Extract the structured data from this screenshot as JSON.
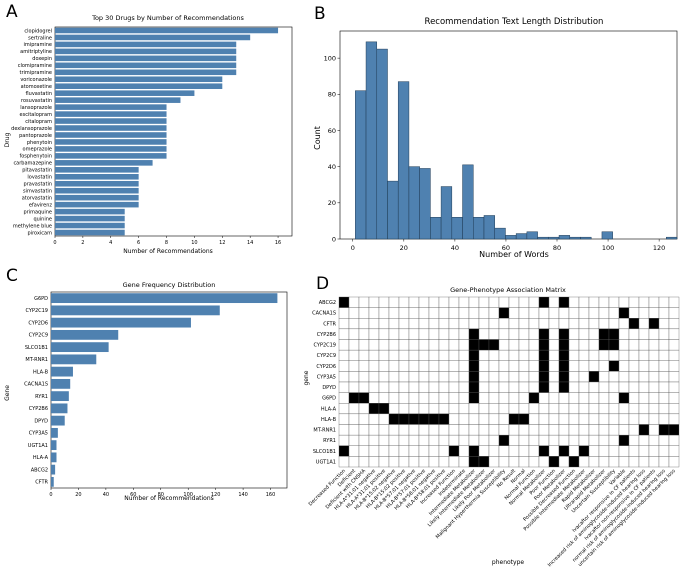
{
  "panel_letters": [
    "A",
    "B",
    "C",
    "D"
  ],
  "colors": {
    "bar": "#4f81b0",
    "hist_edge": "#1f3b55",
    "filled": "#000000",
    "grid_line": "#555555"
  },
  "chart_data": [
    {
      "id": "A",
      "type": "bar",
      "orientation": "horizontal",
      "title": "Top 30 Drugs by Number of Recommendations",
      "xlabel": "Number of Recommendations",
      "ylabel": "Drug",
      "xlim": [
        0,
        17
      ],
      "xticks": [
        0,
        2,
        4,
        6,
        8,
        10,
        12,
        14,
        16
      ],
      "categories": [
        "clopidogrel",
        "sertraline",
        "imipramine",
        "amitriptyline",
        "doxepin",
        "clomipramine",
        "trimipramine",
        "voriconazole",
        "atomoxetine",
        "fluvastatin",
        "rosuvastatin",
        "lansoprazole",
        "escitalopram",
        "citalopram",
        "dexlansoprazole",
        "pantoprazole",
        "phenytoin",
        "omeprazole",
        "fosphenytoin",
        "carbamazepine",
        "pitavastatin",
        "lovastatin",
        "pravastatin",
        "simvastatin",
        "atorvastatin",
        "efavirenz",
        "primaquine",
        "quinine",
        "methylene blue",
        "piroxicam"
      ],
      "values": [
        16,
        14,
        13,
        13,
        13,
        13,
        13,
        12,
        12,
        10,
        9,
        8,
        8,
        8,
        8,
        8,
        8,
        8,
        8,
        7,
        6,
        6,
        6,
        6,
        6,
        6,
        5,
        5,
        5,
        5
      ]
    },
    {
      "id": "B",
      "type": "bar",
      "subtype": "histogram",
      "title": "Recommendation Text Length Distribution",
      "xlabel": "Number of Words",
      "ylabel": "Count",
      "xlim": [
        -5,
        127
      ],
      "ylim": [
        0,
        115
      ],
      "xticks": [
        0,
        20,
        40,
        60,
        80,
        100,
        120
      ],
      "yticks": [
        0,
        20,
        40,
        60,
        80,
        100
      ],
      "bin_width": 4.2,
      "bin_start": 1,
      "counts": [
        82,
        109,
        105,
        32,
        87,
        40,
        39,
        12,
        29,
        12,
        41,
        12,
        13,
        6,
        2,
        3,
        4,
        1,
        1,
        2,
        1,
        1,
        0,
        4,
        0,
        0,
        0,
        0,
        0,
        1
      ]
    },
    {
      "id": "C",
      "type": "bar",
      "orientation": "horizontal",
      "title": "Gene Frequency Distribution",
      "xlabel": "Number of Recommendations",
      "ylabel": "Gene",
      "xlim": [
        0,
        172
      ],
      "xticks": [
        0,
        20,
        40,
        60,
        80,
        100,
        120,
        140,
        160
      ],
      "categories": [
        "G6PD",
        "CYP2C19",
        "CYP2D6",
        "CYP2C9",
        "SLCO1B1",
        "MT-RNR1",
        "HLA-B",
        "CACNA1S",
        "RYR1",
        "CYP2B6",
        "DPYD",
        "CYP3A5",
        "UGT1A1",
        "HLA-A",
        "ABCG2",
        "CFTR"
      ],
      "values": [
        165,
        123,
        102,
        49,
        42,
        33,
        16,
        14,
        13,
        12,
        10,
        5,
        4,
        4,
        3,
        2
      ]
    },
    {
      "id": "D",
      "type": "heatmap",
      "title": "Gene-Phenotype Association Matrix",
      "xlabel": "phenotype",
      "ylabel": "gene",
      "rows": [
        "ABCG2",
        "CACNA1S",
        "CFTR",
        "CYP2B6",
        "CYP2C19",
        "CYP2C9",
        "CYP2D6",
        "CYP3A5",
        "DPYD",
        "G6PD",
        "HLA-A",
        "HLA-B",
        "MT-RNR1",
        "RYR1",
        "SLCO1B1",
        "UGT1A1"
      ],
      "columns": [
        "Decreased Function",
        "Deficient",
        "Deficient with CNSHA",
        "HLA-A*31:01 negative",
        "HLA-A*31:01 positive",
        "HLA-B*15:02 negative",
        "HLA-B*15:02 positive",
        "HLA-B*57:01 negative",
        "HLA-B*57:01 positive",
        "HLA-B*58:01 negative",
        "HLA-B*58:01 positive",
        "Increased Function",
        "Indeterminate",
        "Intermediate Metabolizer",
        "Likely Intermediate Metabolizer",
        "Likely Poor Metabolizer",
        "Malignant Hyperthermia Susceptibility",
        "No Result",
        "Normal",
        "Normal Function",
        "Normal Metabolizer",
        "Poor Function",
        "Poor Metabolizer",
        "Possible Decreased Function",
        "Possible Intermediate Metabolizer",
        "Rapid Metabolizer",
        "Ultrarapid Metabolizer",
        "Uncertain Susceptibility",
        "Variable",
        "ivacaftor responsive in CF patients",
        "Increased risk of aminoglycoside-induced hearing loss",
        "ivacaftor non-responsive in CF patients",
        "normal risk of aminoglycoside-induced hearing loss",
        "uncertain risk of aminoglycoside-induced hearing loss"
      ],
      "filled": [
        [
          0,
          0
        ],
        [
          0,
          20
        ],
        [
          0,
          22
        ],
        [
          1,
          16
        ],
        [
          1,
          28
        ],
        [
          2,
          29
        ],
        [
          2,
          31
        ],
        [
          3,
          13
        ],
        [
          3,
          20
        ],
        [
          3,
          22
        ],
        [
          3,
          26
        ],
        [
          3,
          27
        ],
        [
          4,
          13
        ],
        [
          4,
          14
        ],
        [
          4,
          15
        ],
        [
          4,
          20
        ],
        [
          4,
          22
        ],
        [
          4,
          26
        ],
        [
          4,
          27
        ],
        [
          5,
          13
        ],
        [
          5,
          20
        ],
        [
          5,
          22
        ],
        [
          6,
          13
        ],
        [
          6,
          20
        ],
        [
          6,
          22
        ],
        [
          6,
          27
        ],
        [
          7,
          13
        ],
        [
          7,
          20
        ],
        [
          7,
          22
        ],
        [
          7,
          25
        ],
        [
          8,
          13
        ],
        [
          8,
          20
        ],
        [
          8,
          22
        ],
        [
          9,
          1
        ],
        [
          9,
          2
        ],
        [
          9,
          13
        ],
        [
          9,
          19
        ],
        [
          9,
          28
        ],
        [
          10,
          3
        ],
        [
          10,
          4
        ],
        [
          11,
          5
        ],
        [
          11,
          6
        ],
        [
          11,
          7
        ],
        [
          11,
          8
        ],
        [
          11,
          9
        ],
        [
          11,
          10
        ],
        [
          11,
          17
        ],
        [
          11,
          18
        ],
        [
          12,
          30
        ],
        [
          12,
          32
        ],
        [
          12,
          33
        ],
        [
          13,
          16
        ],
        [
          13,
          28
        ],
        [
          14,
          0
        ],
        [
          14,
          11
        ],
        [
          14,
          13
        ],
        [
          14,
          20
        ],
        [
          14,
          22
        ],
        [
          14,
          24
        ],
        [
          15,
          13
        ],
        [
          15,
          14
        ],
        [
          15,
          21
        ],
        [
          15,
          23
        ]
      ]
    }
  ]
}
